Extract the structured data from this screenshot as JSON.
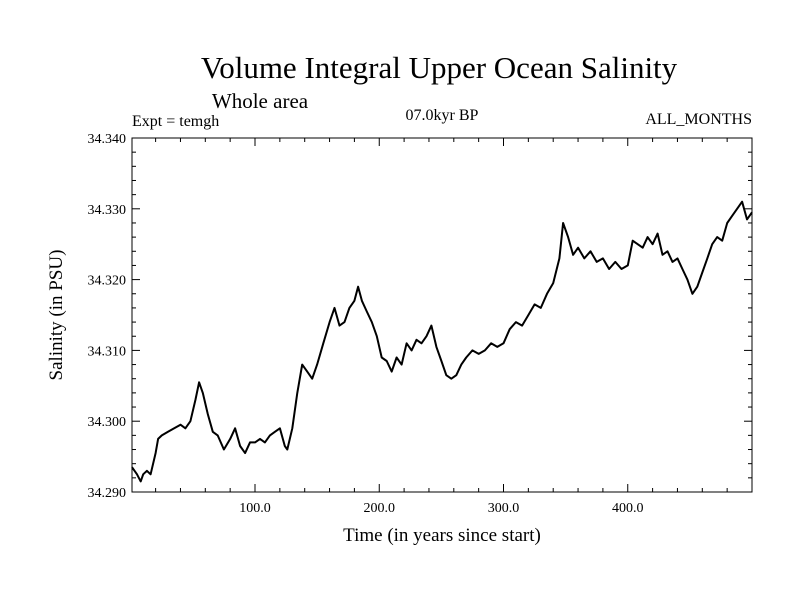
{
  "chart_data": {
    "type": "line",
    "title": "Volume Integral Upper Ocean Salinity",
    "subtitle": "Whole area",
    "experiment": "Expt = temgh",
    "period": "07.0kyr BP",
    "months": "ALL_MONTHS",
    "xlabel": "Time (in years since start)",
    "ylabel": "Salinity (in PSU)",
    "xlim": [
      1,
      500
    ],
    "ylim": [
      34.29,
      34.34
    ],
    "x_ticks": [
      100,
      200,
      300,
      400
    ],
    "x_tick_labels": [
      "100.0",
      "200.0",
      "300.0",
      "400.0"
    ],
    "y_ticks": [
      34.29,
      34.3,
      34.31,
      34.32,
      34.33,
      34.34
    ],
    "y_tick_labels": [
      "34.290",
      "34.300",
      "34.310",
      "34.320",
      "34.330",
      "34.340"
    ],
    "series": [
      {
        "name": "salinity",
        "x": [
          1,
          5,
          8,
          10,
          13,
          16,
          20,
          22,
          25,
          30,
          35,
          40,
          44,
          48,
          52,
          55,
          58,
          62,
          66,
          70,
          75,
          80,
          84,
          88,
          92,
          96,
          100,
          104,
          108,
          112,
          116,
          120,
          124,
          126,
          130,
          134,
          138,
          142,
          146,
          150,
          155,
          160,
          164,
          168,
          172,
          176,
          180,
          183,
          186,
          190,
          194,
          198,
          202,
          206,
          210,
          214,
          218,
          222,
          226,
          230,
          234,
          238,
          242,
          246,
          250,
          254,
          258,
          262,
          266,
          270,
          275,
          280,
          285,
          290,
          295,
          300,
          305,
          310,
          315,
          320,
          325,
          330,
          335,
          340,
          345,
          348,
          352,
          356,
          360,
          365,
          370,
          375,
          380,
          385,
          390,
          395,
          400,
          404,
          408,
          412,
          416,
          420,
          424,
          428,
          432,
          436,
          440,
          444,
          448,
          452,
          456,
          460,
          464,
          468,
          472,
          476,
          480,
          484,
          488,
          492,
          496,
          500
        ],
        "y": [
          34.2935,
          34.2925,
          34.2915,
          34.2925,
          34.293,
          34.2925,
          34.2955,
          34.2975,
          34.298,
          34.2985,
          34.299,
          34.2995,
          34.299,
          34.3,
          34.303,
          34.3055,
          34.304,
          34.301,
          34.2985,
          34.298,
          34.296,
          34.2975,
          34.299,
          34.2965,
          34.2955,
          34.297,
          34.297,
          34.2975,
          34.297,
          34.298,
          34.2985,
          34.299,
          34.2965,
          34.296,
          34.299,
          34.304,
          34.308,
          34.307,
          34.306,
          34.308,
          34.311,
          34.314,
          34.316,
          34.3135,
          34.314,
          34.316,
          34.317,
          34.319,
          34.317,
          34.3155,
          34.314,
          34.312,
          34.309,
          34.3085,
          34.307,
          34.309,
          34.308,
          34.311,
          34.31,
          34.3115,
          34.311,
          34.312,
          34.3135,
          34.3105,
          34.3085,
          34.3065,
          34.306,
          34.3065,
          34.308,
          34.309,
          34.31,
          34.3095,
          34.31,
          34.311,
          34.3105,
          34.311,
          34.313,
          34.314,
          34.3135,
          34.315,
          34.3165,
          34.316,
          34.318,
          34.3195,
          34.323,
          34.328,
          34.326,
          34.3235,
          34.3245,
          34.323,
          34.324,
          34.3225,
          34.323,
          34.3215,
          34.3225,
          34.3215,
          34.322,
          34.3255,
          34.325,
          34.3245,
          34.326,
          34.325,
          34.3265,
          34.3235,
          34.324,
          34.3225,
          34.323,
          34.3215,
          34.32,
          34.318,
          34.319,
          34.321,
          34.323,
          34.325,
          34.326,
          34.3255,
          34.328,
          34.329,
          34.33,
          34.331,
          34.3285,
          34.3295
        ]
      }
    ]
  }
}
